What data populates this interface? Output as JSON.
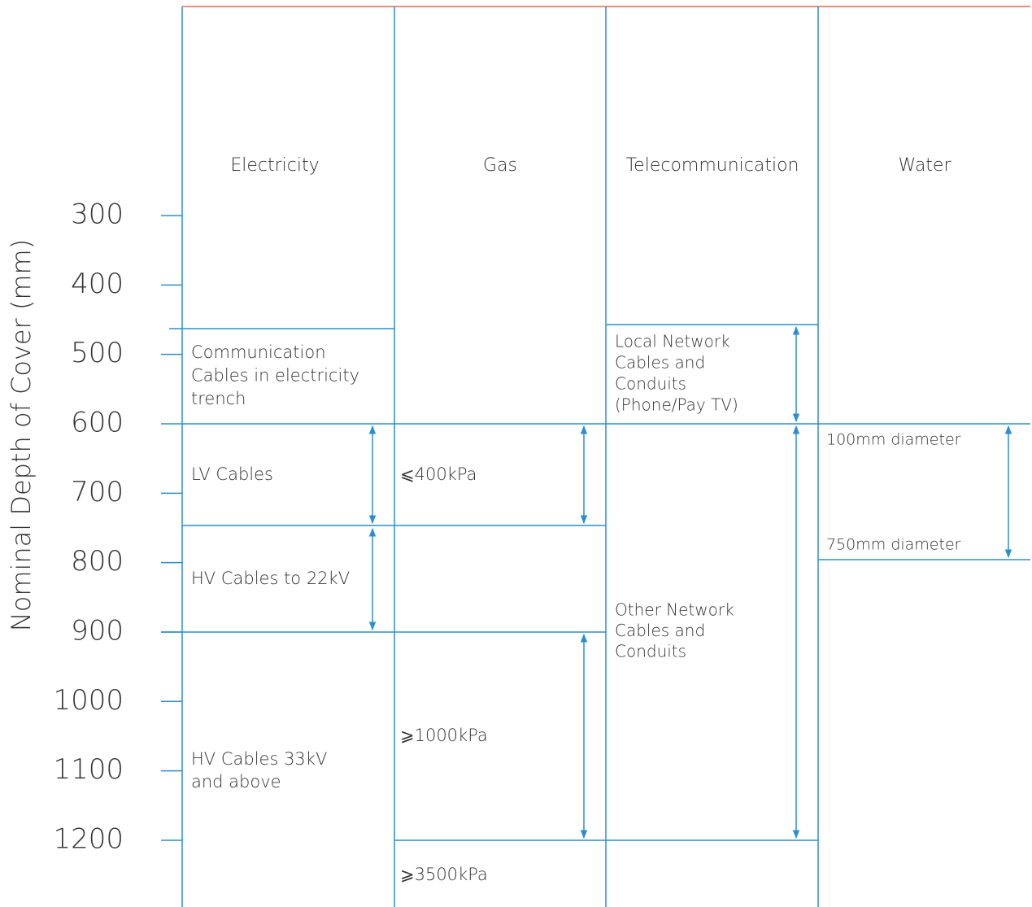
{
  "axis_label": "Nominal Depth of Cover (mm)",
  "ticks": [
    300,
    400,
    500,
    600,
    700,
    800,
    900,
    1000,
    1100,
    1200
  ],
  "columns": [
    {
      "header": "Electricity",
      "cells": [
        {
          "lines": [
            "Communication",
            "Cables in electricity",
            "trench"
          ]
        },
        {
          "lines": [
            "LV Cables"
          ]
        },
        {
          "lines": [
            "HV Cables to 22kV"
          ]
        },
        {
          "lines": [
            "HV Cables 33kV",
            "and above"
          ]
        }
      ]
    },
    {
      "header": "Gas",
      "cells": [
        {
          "lines": [
            "⩽400kPa"
          ]
        },
        {
          "lines": [
            "⩾1000kPa"
          ]
        },
        {
          "lines": [
            "⩾3500kPa"
          ]
        }
      ]
    },
    {
      "header": "Telecommunication",
      "cells": [
        {
          "lines": [
            "Local Network",
            "Cables and",
            "Conduits",
            "(Phone/Pay TV)"
          ]
        },
        {
          "lines": [
            "Other Network",
            "Cables and",
            "Conduits"
          ]
        }
      ]
    },
    {
      "header": "Water",
      "cells": [
        {
          "lines": [
            "100mm diameter"
          ]
        },
        {
          "lines": [
            "750mm diameter"
          ]
        }
      ]
    }
  ]
}
